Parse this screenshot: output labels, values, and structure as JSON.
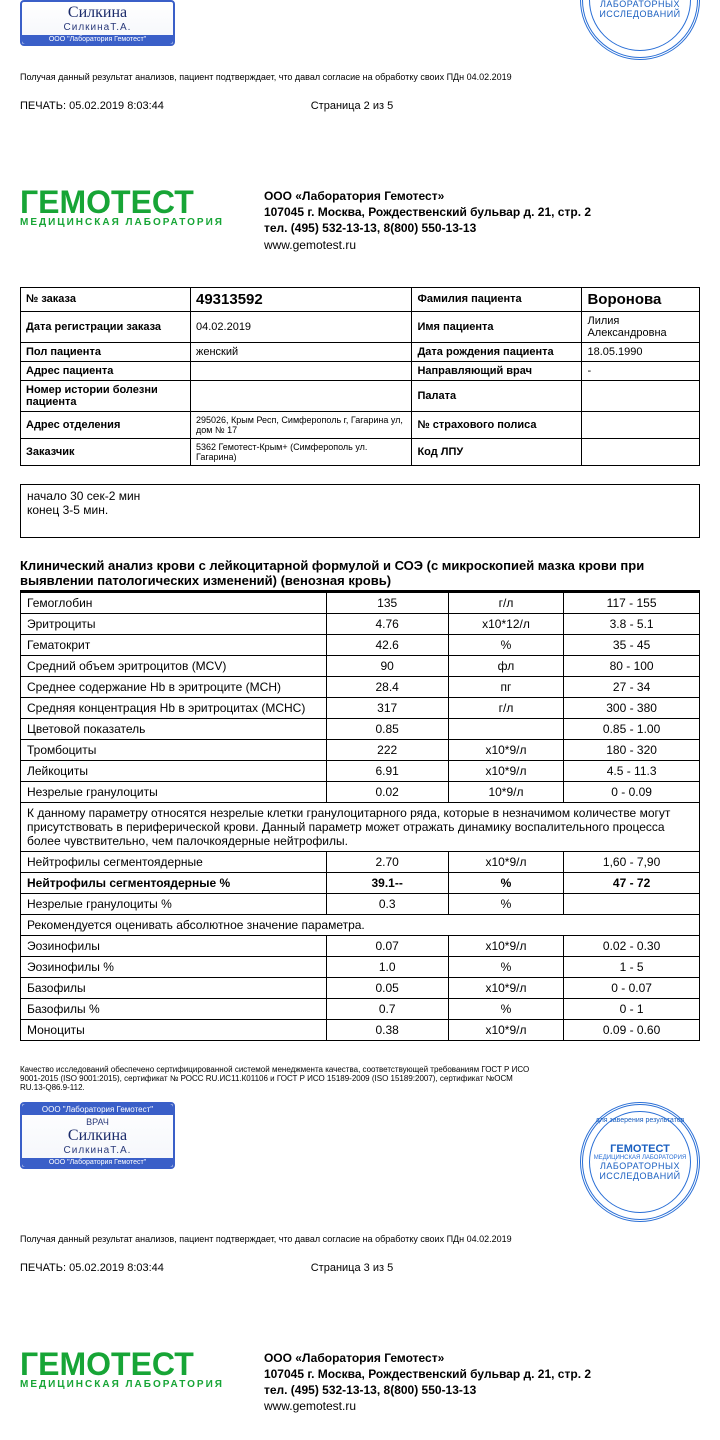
{
  "signature": {
    "topBar": "ООО \"Лаборатория Гемотест\"",
    "role": "ВРАЧ",
    "cursive": "Силкина",
    "printed": "СилкинаТ.А.",
    "botBar": "ООО \"Лаборатория Гемотест\""
  },
  "stamp": {
    "topArc": "для заверения результатов",
    "brand": "ГЕМОТЕСТ",
    "brandSub": "МЕДИЦИНСКАЯ ЛАБОРАТОРИЯ",
    "line1": "ЛАБОРАТОРНЫХ",
    "line2": "ИССЛЕДОВАНИЙ",
    "outer": "• МОСКВА •"
  },
  "consentText": "Получая данный результат анализов, пациент подтверждает, что давал согласие на обработку своих ПДн 04.02.2019",
  "printLabel": "ПЕЧАТЬ:",
  "printTs2": "05.02.2019 8:03:44",
  "page2": "Страница 2 из 5",
  "printTs3": "05.02.2019 8:03:44",
  "page3": "Страница 3 из 5",
  "logo": {
    "big": "ГЕМОТЕСТ",
    "sub": "МЕДИЦИНСКАЯ ЛАБОРАТОРИЯ"
  },
  "company": {
    "name": "ООО «Лаборатория Гемотест»",
    "addr": "107045 г. Москва, Рождественский бульвар д. 21, стр. 2",
    "tel": "тел. (495) 532-13-13, 8(800) 550-13-13",
    "site": "www.gemotest.ru"
  },
  "metaKeys": {
    "order": "№ заказа",
    "regDate": "Дата регистрации заказа",
    "sex": "Пол пациента",
    "pAddr": "Адрес пациента",
    "history": "Номер истории болезни пациента",
    "branch": "Адрес отделения",
    "customer": "Заказчик",
    "surname": "Фамилия пациента",
    "name": "Имя пациента",
    "dob": "Дата рождения пациента",
    "doctor": "Направляющий врач",
    "ward": "Палата",
    "ins": "№ страхового полиса",
    "lpu": "Код ЛПУ"
  },
  "metaVals": {
    "order": "49313592",
    "regDate": "04.02.2019",
    "sex": "женский",
    "pAddr": "",
    "history": "",
    "branch": "295026, Крым Респ, Симферополь г, Гагарина ул, дом № 17",
    "customer": "5362 Гемотест-Крым+ (Симферополь ул. Гагарина)",
    "surname": "Воронова",
    "name": "Лилия Александровна",
    "dob": "18.05.1990",
    "doctor": "-",
    "ward": "",
    "ins": "",
    "lpu": ""
  },
  "noteBox": {
    "l1": "начало 30 сек-2 мин",
    "l2": "конец 3-5 мин."
  },
  "analysisTitle": "Клинический анализ крови с лейкоцитарной формулой и СОЭ (с микроскопией мазка крови при выявлении патологических изменений) (венозная кровь)",
  "rows": [
    {
      "n": "Гемоглобин",
      "v": "135",
      "u": "г/л",
      "r": "117 - 155"
    },
    {
      "n": "Эритроциты",
      "v": "4.76",
      "u": "x10*12/л",
      "r": "3.8 - 5.1"
    },
    {
      "n": "Гематокрит",
      "v": "42.6",
      "u": "%",
      "r": "35 - 45"
    },
    {
      "n": "Средний объем эритроцитов (MCV)",
      "v": "90",
      "u": "фл",
      "r": "80 - 100"
    },
    {
      "n": "Среднее содержание Hb в эритроците (MCH)",
      "v": "28.4",
      "u": "пг",
      "r": "27 - 34"
    },
    {
      "n": "Средняя концентрация Hb в эритроцитах (MCHC)",
      "v": "317",
      "u": "г/л",
      "r": "300 - 380"
    },
    {
      "n": "Цветовой показатель",
      "v": "0.85",
      "u": "",
      "r": "0.85 - 1.00"
    },
    {
      "n": "Тромбоциты",
      "v": "222",
      "u": "x10*9/л",
      "r": "180 - 320"
    },
    {
      "n": "Лейкоциты",
      "v": "6.91",
      "u": "x10*9/л",
      "r": "4.5 - 11.3"
    },
    {
      "n": " Незрелые гранулоциты",
      "v": "0.02",
      "u": "10*9/л",
      "r": "0 - 0.09"
    }
  ],
  "note1": "К данному параметру относятся незрелые клетки гранулоцитарного ряда, которые  в незначимом количестве могут присутствовать в периферической крови. Данный параметр может отражать динамику воспалительного процесса более чувствительно, чем палочкоядерные нейтрофилы.",
  "rows2": [
    {
      "n": "Нейтрофилы сегментоядерные",
      "v": "2.70",
      "u": "x10*9/л",
      "r": "1,60 - 7,90"
    },
    {
      "n": "Нейтрофилы сегментоядерные %",
      "v": "39.1--",
      "u": "%",
      "r": "47 - 72",
      "bold": true
    },
    {
      "n": " Незрелые гранулоциты %",
      "v": "0.3",
      "u": "%",
      "r": ""
    }
  ],
  "note2": "Рекомендуется оценивать абсолютное значение параметра.",
  "rows3": [
    {
      "n": "Эозинофилы",
      "v": "0.07",
      "u": "x10*9/л",
      "r": "0.02 - 0.30"
    },
    {
      "n": "Эозинофилы %",
      "v": "1.0",
      "u": "%",
      "r": "1 - 5"
    },
    {
      "n": "Базофилы",
      "v": "0.05",
      "u": "x10*9/л",
      "r": "0 - 0.07"
    },
    {
      "n": "Базофилы %",
      "v": "0.7",
      "u": "%",
      "r": "0 - 1"
    },
    {
      "n": "Моноциты",
      "v": "0.38",
      "u": "x10*9/л",
      "r": "0.09 - 0.60"
    }
  ],
  "quality": "Качество исследований обеспечено сертифицированной системой менеджмента качества, соответствующей требованиям ГОСТ Р ИСО 9001-2015 (ISO 9001:2015), сертификат № РОСС RU.ИС11.К01106 и ГОСТ Р ИСО 15189-2009 (ISO 15189:2007), сертификат №ОСМ RU.13-Q86.9-112.",
  "colors": {
    "green": "#17a536",
    "blue": "#2a6fd6"
  },
  "colWidths": {
    "name": "45%",
    "val": "18%",
    "unit": "17%",
    "ref": "20%"
  }
}
